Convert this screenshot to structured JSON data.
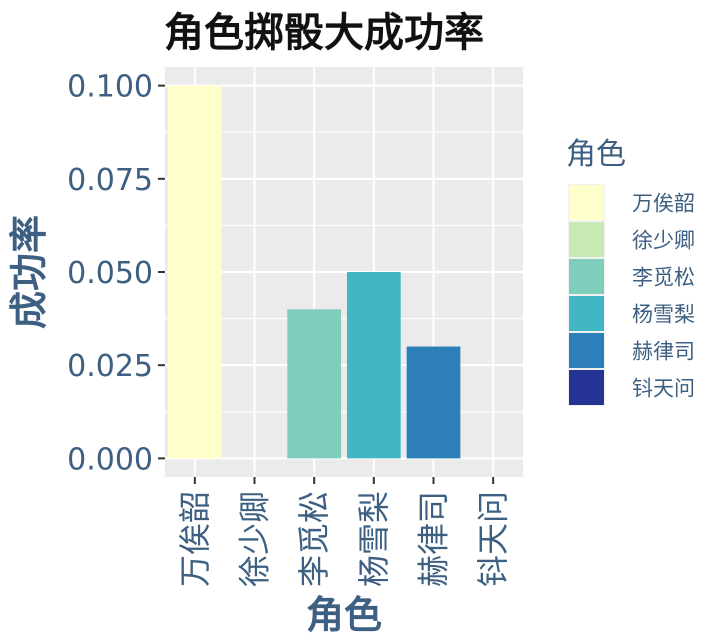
{
  "chart_data": {
    "type": "bar",
    "title": "角色掷骰大成功率",
    "xlabel": "角色",
    "ylabel": "成功率",
    "categories": [
      "万俟韶",
      "徐少卿",
      "李觅松",
      "杨雪梨",
      "赫律司",
      "钭天问"
    ],
    "values": [
      0.1,
      0.0,
      0.04,
      0.05,
      0.03,
      0.0
    ],
    "colors": [
      "#ffffcc",
      "#c7e9b4",
      "#7fcdbb",
      "#41b6c4",
      "#2c7fb8",
      "#253494"
    ],
    "ylim": [
      -0.005,
      0.105
    ],
    "yticks": [
      0.0,
      0.025,
      0.05,
      0.075,
      0.1
    ],
    "ytick_labels": [
      "0.000",
      "0.025",
      "0.050",
      "0.075",
      "0.100"
    ],
    "grid": true,
    "legend": {
      "title": "角色",
      "position": "right",
      "entries": [
        "万俟韶",
        "徐少卿",
        "李觅松",
        "杨雪梨",
        "赫律司",
        "钭天问"
      ]
    }
  }
}
